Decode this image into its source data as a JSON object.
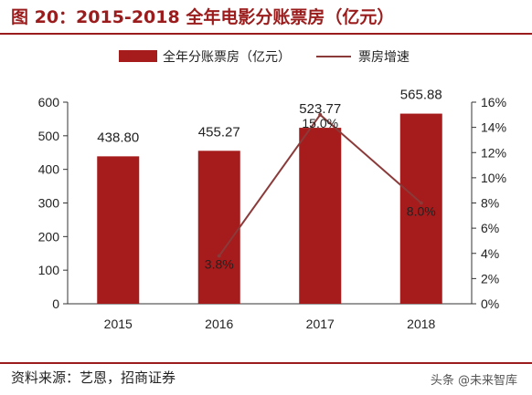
{
  "figure": {
    "title": "图 20：2015-2018 全年电影分账票房（亿元）",
    "source": "资料来源：艺恩，招商证券",
    "watermark": "头条 @未来智库"
  },
  "chart_data": {
    "type": "bar",
    "categories": [
      "2015",
      "2016",
      "2017",
      "2018"
    ],
    "series": [
      {
        "name": "全年分账票房（亿元）",
        "kind": "bar",
        "axis": "left",
        "color": "#a61b1b",
        "values": [
          438.8,
          455.27,
          523.77,
          565.88
        ],
        "labels": [
          "438.80",
          "455.27",
          "523.77",
          "565.88"
        ]
      },
      {
        "name": "票房增速",
        "kind": "line",
        "axis": "right",
        "color": "#8b3a3a",
        "values": [
          null,
          3.8,
          15.0,
          8.0
        ],
        "labels": [
          "",
          "3.8%",
          "15.0%",
          "8.0%"
        ]
      }
    ],
    "y_left": {
      "min": 0,
      "max": 600,
      "ticks": [
        "0",
        "100",
        "200",
        "300",
        "400",
        "500",
        "600"
      ]
    },
    "y_right": {
      "min": 0,
      "max": 16,
      "unit": "%",
      "ticks": [
        "0%",
        "2%",
        "4%",
        "6%",
        "8%",
        "10%",
        "12%",
        "14%",
        "16%"
      ]
    },
    "legend_position": "top-center",
    "grid": false
  }
}
